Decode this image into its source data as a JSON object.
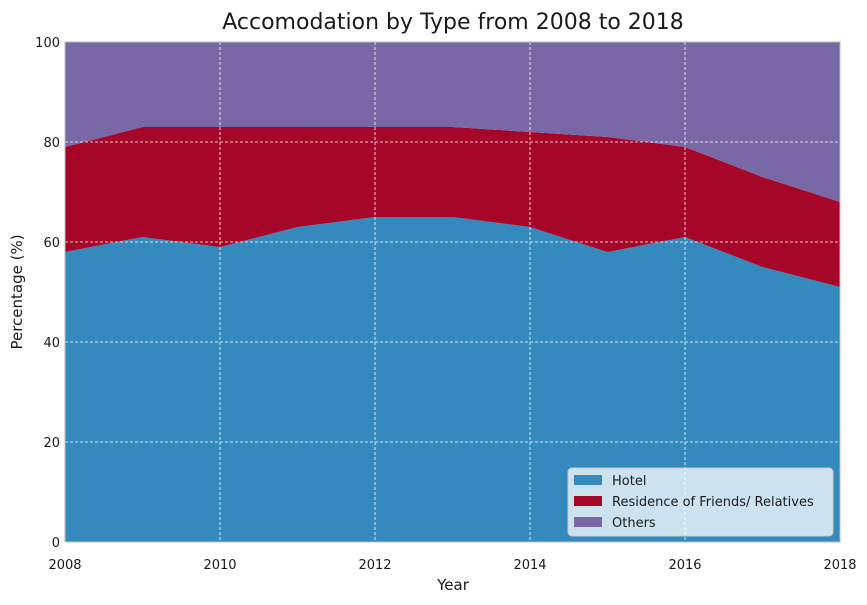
{
  "chart_data": {
    "type": "area",
    "stacked": true,
    "title": "Accomodation by Type from 2008 to 2018",
    "xlabel": "Year",
    "ylabel": "Percentage (%)",
    "xlim": [
      2008,
      2018
    ],
    "ylim": [
      0,
      100
    ],
    "x": [
      2008,
      2009,
      2010,
      2011,
      2012,
      2013,
      2014,
      2015,
      2016,
      2017,
      2018
    ],
    "xticks": [
      2008,
      2010,
      2012,
      2014,
      2016,
      2018
    ],
    "yticks": [
      0,
      20,
      40,
      60,
      80,
      100
    ],
    "grid": true,
    "legend_position": "bottom-right",
    "series": [
      {
        "name": "Hotel",
        "color": "#348abd",
        "values": [
          58,
          61,
          59,
          63,
          65,
          65,
          63,
          58,
          61,
          55,
          51
        ]
      },
      {
        "name": "Residence of Friends/ Relatives",
        "color": "#a60628",
        "values": [
          21,
          22,
          24,
          20,
          18,
          18,
          19,
          23,
          18,
          18,
          17
        ]
      },
      {
        "name": "Others",
        "color": "#7a68a6",
        "values": [
          21,
          17,
          17,
          17,
          17,
          17,
          18,
          19,
          21,
          27,
          32
        ]
      }
    ]
  }
}
